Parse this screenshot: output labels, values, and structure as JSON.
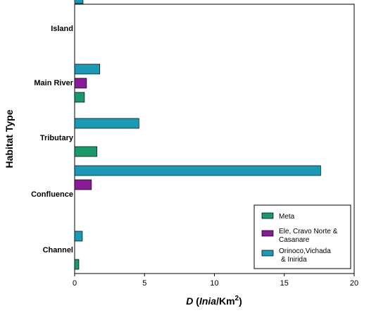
{
  "chart_data": {
    "type": "bar",
    "orientation": "horizontal",
    "categories": [
      "Channel",
      "Confluence",
      "Tributary",
      "Main River",
      "Island"
    ],
    "series": [
      {
        "name": "Meta",
        "color": "#1a9a6c",
        "values": [
          0.3,
          0,
          1.6,
          0.7,
          0
        ]
      },
      {
        "name_lines": [
          "Ele, Cravo Norte &",
          "Casanare"
        ],
        "color": "#8b1a9a",
        "values": [
          0,
          1.2,
          0,
          0.85,
          0
        ]
      },
      {
        "name_lines": [
          "Orinoco,Vichada",
          "& Inirida"
        ],
        "color": "#1a9ab4",
        "values": [
          0.55,
          17.6,
          4.6,
          1.8,
          0.6
        ]
      }
    ],
    "xlim": [
      0,
      20
    ],
    "xticks": [
      "0",
      "5",
      "10",
      "15",
      "20"
    ],
    "xlabel": {
      "var": "D",
      "open": "(",
      "unit_italic": "Inia",
      "unit_rest": "/Km",
      "exp": "2",
      "close": ")"
    },
    "ylabel": "Habitat Type",
    "legend_position": "bottom-right",
    "grid": false
  }
}
